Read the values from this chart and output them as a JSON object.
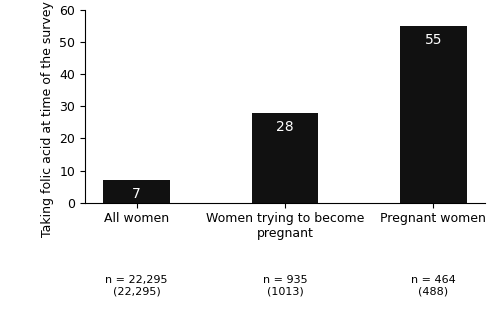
{
  "categories": [
    "All women",
    "Women trying to become\npregnant",
    "Pregnant women"
  ],
  "values": [
    7,
    28,
    55
  ],
  "bar_color": "#111111",
  "bar_labels": [
    "7",
    "28",
    "55"
  ],
  "x_sublabels": [
    "n = 22,295\n(22,295)",
    "n = 935\n(1013)",
    "n = 464\n(488)"
  ],
  "ylabel": "Taking folic acid at time of the survey (%)",
  "ylim": [
    0,
    60
  ],
  "yticks": [
    0,
    10,
    20,
    30,
    40,
    50,
    60
  ],
  "label_color": "#ffffff",
  "sublabel_color": "#000000",
  "bar_width": 0.45,
  "ylabel_fontsize": 9,
  "tick_fontsize": 9,
  "bar_label_fontsize": 10,
  "sublabel_fontsize": 8,
  "cat_fontsize": 9
}
